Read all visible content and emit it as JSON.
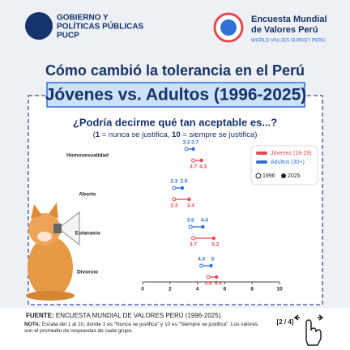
{
  "header": {
    "left_logo": [
      "GOBIERNO Y",
      "POLÍTICAS PÚBLICAS",
      "PUCP"
    ],
    "right_logo": [
      "Encuesta Mundial",
      "de Valores Perú"
    ],
    "right_tagline": "WORLD VALUES SURVEY PERÚ"
  },
  "title": "Cómo cambió la tolerancia en el Perú",
  "subtitle": "Jóvenes vs. Adultos (1996-2025)",
  "question": "¿Podría decirme qué tan aceptable es...?",
  "scale_note": [
    "(",
    "1",
    " = nunca se justifica, ",
    "10",
    " = siempre se justifica)"
  ],
  "chart_data": {
    "type": "dumbbell",
    "categories": [
      "Homosexualidad",
      "Aborto",
      "Eutanasia",
      "Divorcio"
    ],
    "periods": [
      "1996",
      "2025"
    ],
    "series": [
      {
        "name": "Adultos (30+)",
        "color": "#2f6fd6",
        "start_values": [
          3.2,
          2.3,
          3.5,
          4.3
        ],
        "end_values": [
          3.7,
          2.9,
          4.4,
          5.0
        ]
      },
      {
        "name": "Jóvenes (18-29)",
        "color": "#e8474e",
        "start_values": [
          3.7,
          2.3,
          3.7,
          4.8
        ],
        "end_values": [
          4.3,
          3.4,
          5.2,
          5.4
        ]
      }
    ],
    "xlim": [
      0,
      10
    ],
    "xticks": [
      0,
      2,
      4,
      6,
      8,
      10
    ],
    "legend": "upper right"
  },
  "footer": {
    "source_label": "FUENTE:",
    "source": " ENCUESTA MUNDIAL DE VALORES PERÚ (1996-2025).",
    "note_label": "NOTA:",
    "note": " Escala del 1 al 10, donde 1 es “Nunca se justifica” y 10 es “Siempre se justifica”. Los valores son el promedio de respuestas de cada grupo.",
    "page": "[2 / 4]"
  }
}
